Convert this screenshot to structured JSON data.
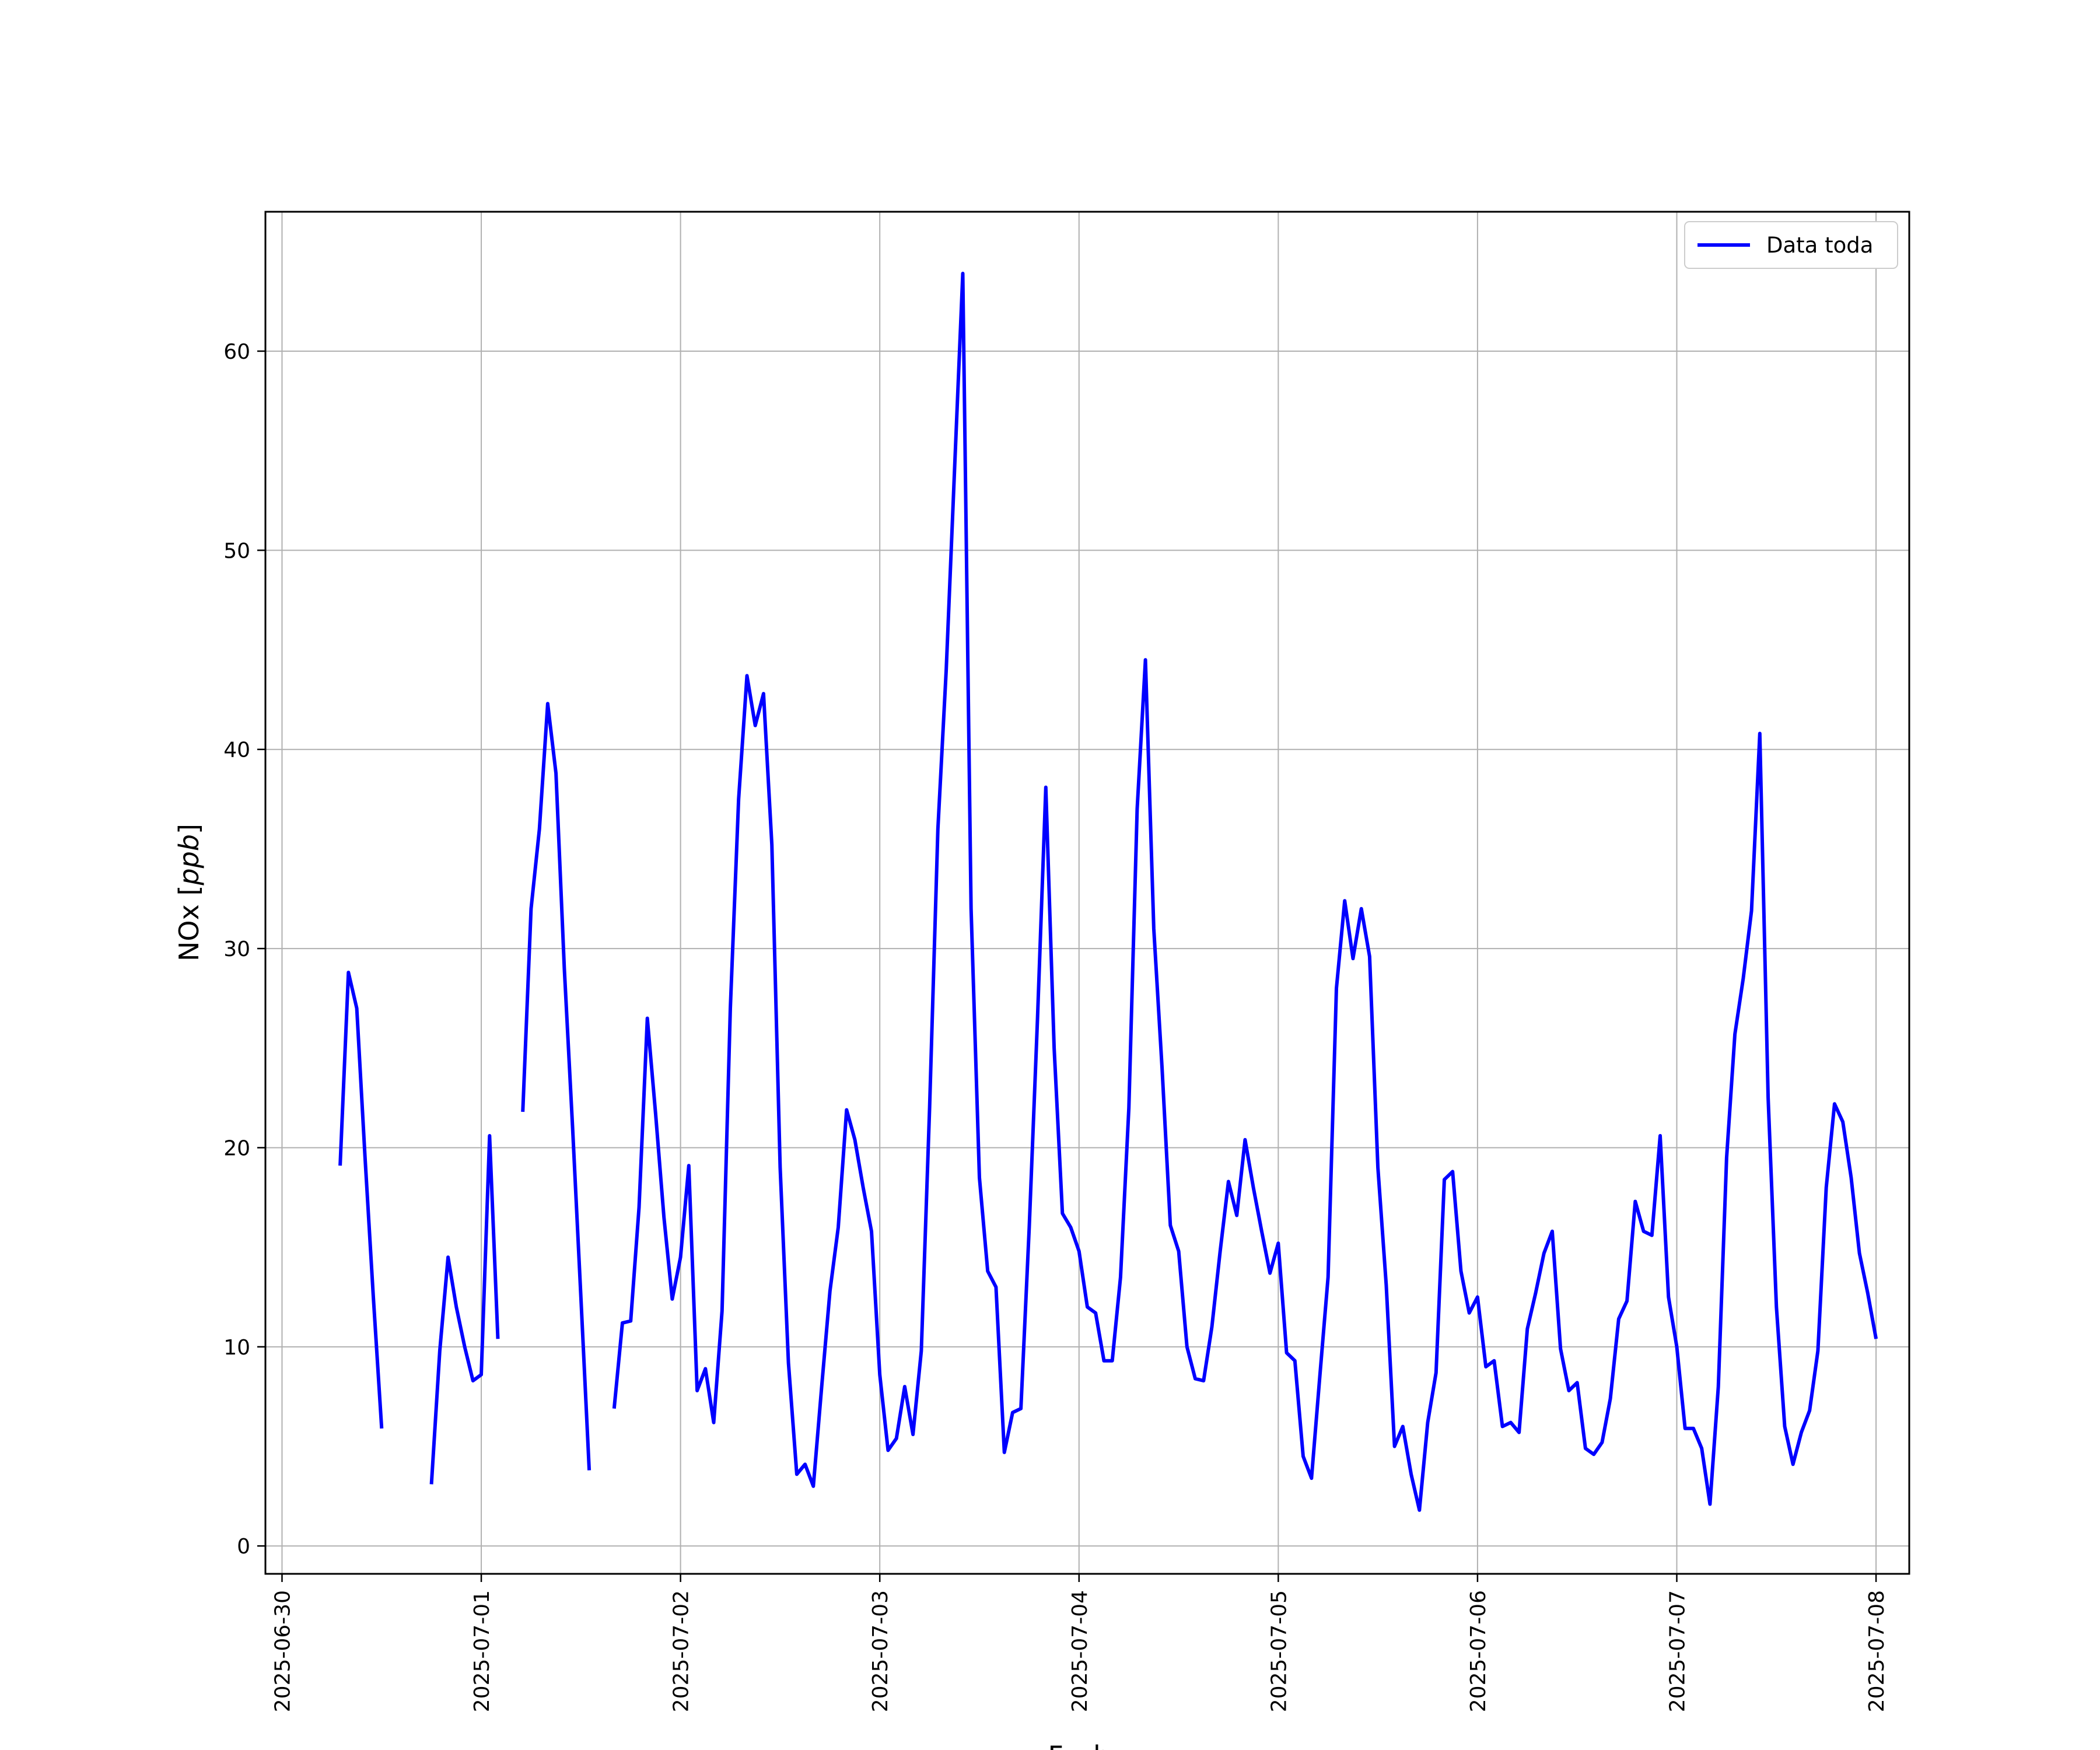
{
  "chart_data": {
    "type": "line",
    "xlabel": "Fecha",
    "ylabel": "NOx [ppb]",
    "ylabel_plain": "NOx [",
    "ylabel_unit": "ppb",
    "ylabel_close": "]",
    "xlim": [
      "2025-06-29 22:00",
      "2025-07-08 04:00"
    ],
    "ylim": [
      -1.4,
      67.0
    ],
    "grid": true,
    "legend_position": "top-right",
    "x_ticks": [
      "2025-06-30",
      "2025-07-01",
      "2025-07-02",
      "2025-07-03",
      "2025-07-04",
      "2025-07-05",
      "2025-07-06",
      "2025-07-07",
      "2025-07-08"
    ],
    "y_ticks": [
      0,
      10,
      20,
      30,
      40,
      50,
      60
    ],
    "series": [
      {
        "name": "Data toda",
        "color": "#0000ff",
        "x": [
          "2025-06-30 07:00",
          "2025-06-30 08:00",
          "2025-06-30 09:00",
          "2025-06-30 10:00",
          "2025-06-30 11:00",
          "2025-06-30 12:00",
          null,
          "2025-06-30 18:00",
          "2025-06-30 19:00",
          "2025-06-30 20:00",
          "2025-06-30 21:00",
          "2025-06-30 22:00",
          "2025-06-30 23:00",
          "2025-07-01 00:00",
          "2025-07-01 01:00",
          "2025-07-01 02:00",
          null,
          "2025-07-01 05:00",
          "2025-07-01 06:00",
          "2025-07-01 07:00",
          "2025-07-01 08:00",
          "2025-07-01 09:00",
          "2025-07-01 10:00",
          "2025-07-01 11:00",
          "2025-07-01 12:00",
          "2025-07-01 13:00",
          null,
          "2025-07-01 16:00",
          "2025-07-01 17:00",
          "2025-07-01 18:00",
          "2025-07-01 19:00",
          "2025-07-01 20:00",
          "2025-07-01 21:00",
          "2025-07-01 22:00",
          "2025-07-01 23:00",
          "2025-07-02 00:00",
          "2025-07-02 01:00",
          "2025-07-02 02:00",
          "2025-07-02 03:00",
          "2025-07-02 04:00",
          "2025-07-02 05:00",
          "2025-07-02 06:00",
          "2025-07-02 07:00",
          "2025-07-02 08:00",
          "2025-07-02 09:00",
          "2025-07-02 10:00",
          "2025-07-02 11:00",
          "2025-07-02 12:00",
          "2025-07-02 13:00",
          "2025-07-02 14:00",
          "2025-07-02 15:00",
          "2025-07-02 16:00",
          "2025-07-02 17:00",
          "2025-07-02 18:00",
          "2025-07-02 19:00",
          "2025-07-02 20:00",
          "2025-07-02 21:00",
          "2025-07-02 22:00",
          "2025-07-02 23:00",
          "2025-07-03 00:00",
          "2025-07-03 01:00",
          "2025-07-03 02:00",
          "2025-07-03 03:00",
          "2025-07-03 04:00",
          "2025-07-03 05:00",
          "2025-07-03 06:00",
          "2025-07-03 07:00",
          "2025-07-03 08:00",
          "2025-07-03 09:00",
          "2025-07-03 10:00",
          "2025-07-03 11:00",
          "2025-07-03 12:00",
          "2025-07-03 13:00",
          "2025-07-03 14:00",
          "2025-07-03 15:00",
          "2025-07-03 16:00",
          "2025-07-03 17:00",
          "2025-07-03 18:00",
          "2025-07-03 19:00",
          "2025-07-03 20:00",
          "2025-07-03 21:00",
          "2025-07-03 22:00",
          "2025-07-03 23:00",
          "2025-07-04 00:00",
          "2025-07-04 01:00",
          "2025-07-04 02:00",
          "2025-07-04 03:00",
          "2025-07-04 04:00",
          "2025-07-04 05:00",
          "2025-07-04 06:00",
          "2025-07-04 07:00",
          "2025-07-04 08:00",
          "2025-07-04 09:00",
          "2025-07-04 10:00",
          "2025-07-04 11:00",
          "2025-07-04 12:00",
          "2025-07-04 13:00",
          "2025-07-04 14:00",
          "2025-07-04 15:00",
          "2025-07-04 16:00",
          "2025-07-04 17:00",
          "2025-07-04 18:00",
          "2025-07-04 19:00",
          "2025-07-04 20:00",
          "2025-07-04 21:00",
          "2025-07-04 22:00",
          "2025-07-04 23:00",
          "2025-07-05 00:00",
          "2025-07-05 01:00",
          "2025-07-05 02:00",
          "2025-07-05 03:00",
          "2025-07-05 04:00",
          "2025-07-05 05:00",
          "2025-07-05 06:00",
          "2025-07-05 07:00",
          "2025-07-05 08:00",
          "2025-07-05 09:00",
          "2025-07-05 10:00",
          "2025-07-05 11:00",
          "2025-07-05 12:00",
          "2025-07-05 13:00",
          "2025-07-05 14:00",
          "2025-07-05 15:00",
          "2025-07-05 16:00",
          "2025-07-05 17:00",
          "2025-07-05 18:00",
          "2025-07-05 19:00",
          "2025-07-05 20:00",
          "2025-07-05 21:00",
          "2025-07-05 22:00",
          "2025-07-05 23:00",
          "2025-07-06 00:00",
          "2025-07-06 01:00",
          "2025-07-06 02:00",
          "2025-07-06 03:00",
          "2025-07-06 04:00",
          "2025-07-06 05:00",
          "2025-07-06 06:00",
          "2025-07-06 07:00",
          "2025-07-06 08:00",
          "2025-07-06 09:00",
          "2025-07-06 10:00",
          "2025-07-06 11:00",
          "2025-07-06 12:00",
          "2025-07-06 13:00",
          "2025-07-06 14:00",
          "2025-07-06 15:00",
          "2025-07-06 16:00",
          "2025-07-06 17:00",
          "2025-07-06 18:00",
          "2025-07-06 19:00",
          "2025-07-06 20:00",
          "2025-07-06 21:00",
          "2025-07-06 22:00",
          "2025-07-06 23:00",
          "2025-07-07 00:00",
          "2025-07-07 01:00",
          "2025-07-07 02:00",
          "2025-07-07 03:00",
          "2025-07-07 04:00",
          "2025-07-07 05:00",
          "2025-07-07 06:00",
          "2025-07-07 07:00",
          "2025-07-07 08:00",
          "2025-07-07 09:00",
          "2025-07-07 10:00",
          "2025-07-07 11:00",
          "2025-07-07 12:00",
          "2025-07-07 13:00",
          "2025-07-07 14:00",
          "2025-07-07 15:00",
          "2025-07-07 16:00",
          "2025-07-07 17:00",
          "2025-07-07 18:00",
          "2025-07-07 19:00",
          "2025-07-07 20:00",
          "2025-07-07 21:00",
          "2025-07-07 22:00",
          "2025-07-07 23:00",
          "2025-07-08 00:00"
        ],
        "y": [
          19.1,
          28.8,
          27.0,
          19.5,
          12.5,
          5.9,
          null,
          3.1,
          9.8,
          14.5,
          12.0,
          10.0,
          8.3,
          8.6,
          20.6,
          10.4,
          null,
          21.8,
          32.0,
          36.0,
          42.3,
          38.8,
          29.0,
          21.0,
          12.5,
          3.8,
          null,
          6.9,
          11.2,
          11.3,
          17.0,
          26.5,
          21.7,
          16.5,
          12.4,
          14.5,
          19.1,
          7.8,
          8.9,
          6.2,
          11.8,
          27.0,
          37.5,
          43.7,
          41.2,
          42.8,
          35.2,
          19.0,
          9.2,
          3.6,
          4.1,
          3.0,
          8.0,
          12.8,
          16.0,
          21.9,
          20.4,
          18.0,
          15.8,
          8.6,
          4.8,
          5.4,
          8.0,
          5.6,
          9.8,
          22.0,
          36.0,
          44.0,
          54.0,
          63.9,
          32.0,
          18.5,
          13.8,
          13.0,
          4.7,
          6.7,
          6.9,
          16.0,
          26.5,
          38.1,
          25.0,
          16.7,
          16.0,
          14.8,
          12.0,
          11.7,
          9.3,
          9.3,
          13.5,
          22.0,
          37.0,
          44.5,
          31.0,
          24.0,
          16.1,
          14.8,
          10.0,
          8.4,
          8.3,
          11.0,
          14.8,
          18.3,
          16.6,
          20.4,
          18.0,
          15.8,
          13.7,
          15.2,
          9.7,
          9.3,
          4.5,
          3.4,
          8.5,
          13.5,
          28.0,
          32.4,
          29.5,
          32.0,
          29.6,
          19.0,
          13.1,
          5.0,
          6.0,
          3.6,
          1.8,
          6.2,
          8.7,
          18.4,
          18.8,
          13.8,
          11.7,
          12.5,
          9.0,
          9.3,
          6.0,
          6.2,
          5.7,
          10.9,
          12.7,
          14.7,
          15.8,
          9.9,
          7.8,
          8.2,
          4.9,
          4.6,
          5.2,
          7.4,
          11.4,
          12.3,
          17.3,
          15.8,
          15.6,
          20.6,
          12.5,
          10.0,
          5.9,
          5.9,
          4.9,
          2.1,
          8.0,
          19.5,
          25.7,
          28.5,
          31.9,
          40.8,
          22.5,
          12.0,
          6.0,
          4.1,
          5.7,
          6.8,
          9.8,
          18.0,
          22.2,
          21.3,
          18.5,
          14.7,
          12.7,
          10.4
        ]
      }
    ]
  }
}
